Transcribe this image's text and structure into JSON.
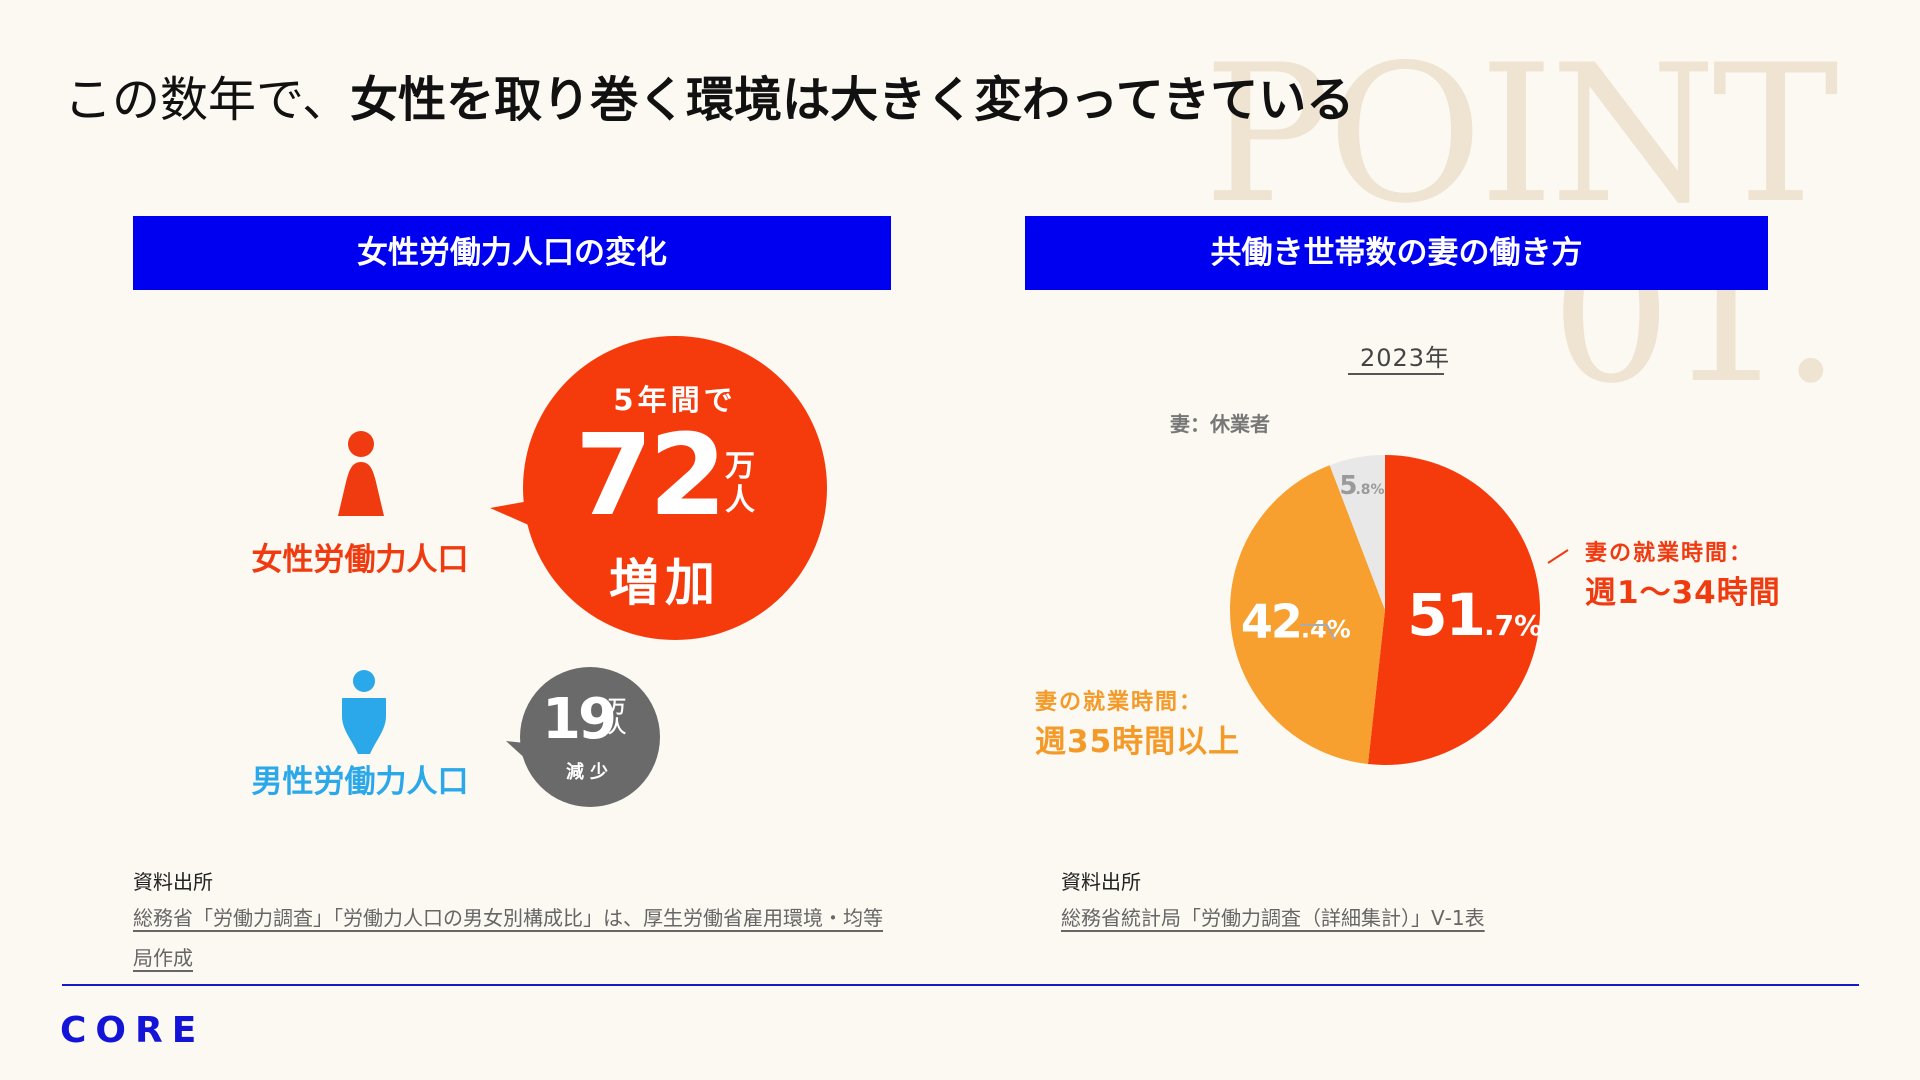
{
  "background_word": {
    "line1": "POINT",
    "line2": "01."
  },
  "headline": {
    "plain": "この数年で、",
    "bold": "女性を取り巻く環境は大きく変わってきている"
  },
  "left_panel": {
    "title": "女性労働力人口の変化",
    "female": {
      "label": "女性労働力人口",
      "bubble_top": "5年間で",
      "bubble_number": "72",
      "bubble_unit": "万人",
      "bubble_bottom": "増加"
    },
    "male": {
      "label": "男性労働力人口",
      "bubble_number": "19",
      "bubble_unit": "万人",
      "bubble_bottom": "減少"
    },
    "source_title": "資料出所",
    "source_body": "総務省「労働力調査」「労働力人口の男女別構成比」は、厚生労働省雇用環境・均等局作成"
  },
  "right_panel": {
    "title": "共働き世帯数の妻の働き方",
    "source_title": "資料出所",
    "source_body": "総務省統計局「労働力調査（詳細集計）」Ⅴ-1表"
  },
  "chart_data": {
    "type": "pie",
    "title": "2023年",
    "slices": [
      {
        "label": "妻の就業時間：週1～34時間",
        "title": "妻の就業時間：",
        "sub": "週1～34時間",
        "value": 51.7,
        "int": "51",
        "dec": ".7%",
        "color": "#f53a0c"
      },
      {
        "label": "妻の就業時間：週35時間以上",
        "title": "妻の就業時間：",
        "sub": "週35時間以上",
        "value": 42.4,
        "int": "42",
        "dec": ".4%",
        "color": "#f7a030"
      },
      {
        "label": "妻：休業者",
        "title": "妻：休業者",
        "sub": "",
        "value": 5.8,
        "int": "5",
        "dec": ".8%",
        "color": "#e8e8e8"
      }
    ]
  },
  "colors": {
    "accent_blue": "#0000f0",
    "female": "#f03a10",
    "male": "#2aa8ea",
    "bubble_grey": "#6a6a6a"
  },
  "footer": {
    "logo": "CORE"
  }
}
